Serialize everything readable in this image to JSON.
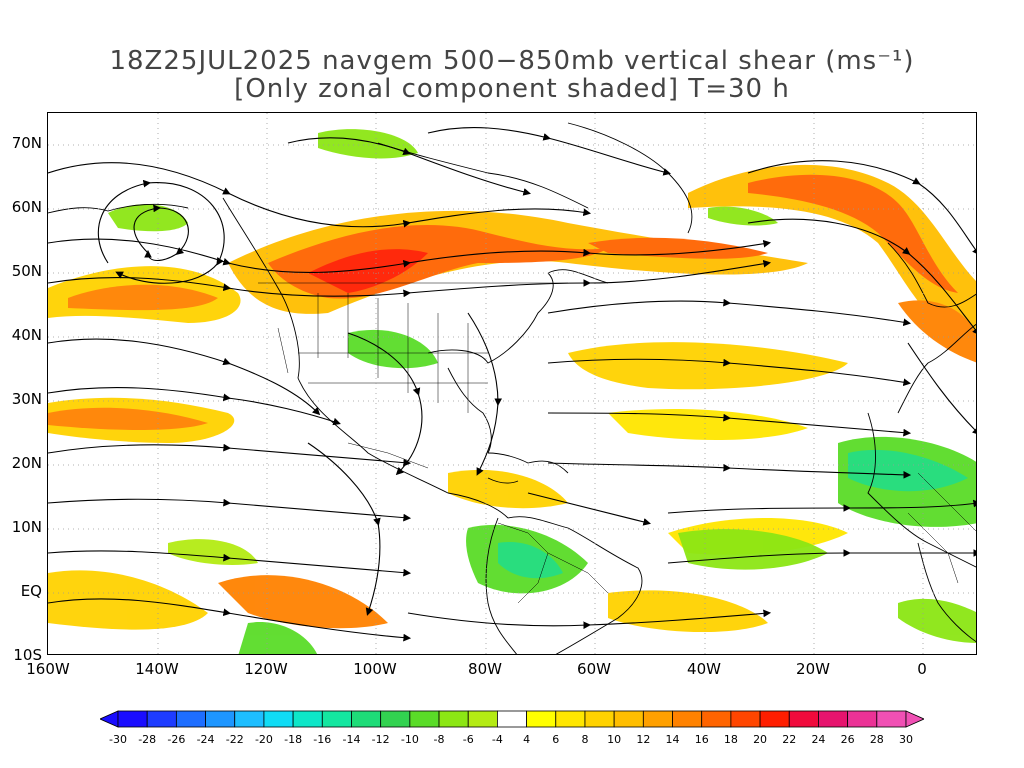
{
  "title": {
    "line1": "18Z25JUL2025 navgem 500−850mb vertical shear (ms⁻¹)",
    "line2": "[Only zonal component shaded] T=30 h"
  },
  "map": {
    "lat_labels": [
      "70N",
      "60N",
      "50N",
      "40N",
      "30N",
      "20N",
      "10N",
      "EQ",
      "10S"
    ],
    "lon_labels": [
      "160W",
      "140W",
      "120W",
      "100W",
      "80W",
      "60W",
      "40W",
      "20W",
      "0"
    ],
    "lat_range": [
      -10,
      75
    ],
    "lon_range": [
      -160,
      10
    ]
  },
  "colorbar": {
    "labels": [
      "-30",
      "-28",
      "-26",
      "-24",
      "-22",
      "-20",
      "-18",
      "-16",
      "-14",
      "-12",
      "-10",
      "-8",
      "-6",
      "-4",
      "4",
      "6",
      "8",
      "10",
      "12",
      "14",
      "16",
      "18",
      "20",
      "22",
      "24",
      "26",
      "28",
      "30"
    ],
    "colors": [
      "#1a0dff",
      "#1e3cff",
      "#1e6eff",
      "#1e96ff",
      "#1ebeff",
      "#10dcf5",
      "#0ee6c8",
      "#14e6a0",
      "#1edc78",
      "#32d250",
      "#5adc28",
      "#8ce614",
      "#b4eb14",
      "#ffffff",
      "#ffff00",
      "#ffe600",
      "#ffd200",
      "#ffbe00",
      "#ffa000",
      "#ff8200",
      "#ff6400",
      "#ff4600",
      "#ff1e00",
      "#f00a3c",
      "#e6146e",
      "#eb3296",
      "#f050b4"
    ],
    "low_color": "#1a0dff",
    "high_color": "#f050b4"
  }
}
